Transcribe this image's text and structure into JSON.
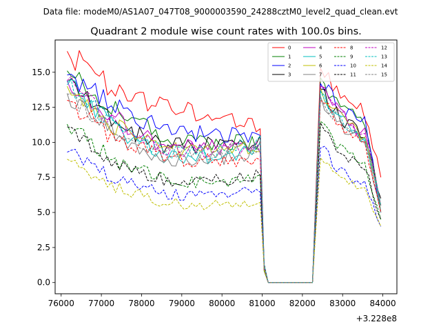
{
  "chart_data": {
    "type": "line",
    "suptitle": "Data file: modeM0/AS1A07_047T08_9000003590_24288cztM0_level2_quad_clean.evt",
    "title": "Quadrant 2 module wise count rates with 100.0s bins.",
    "xlabel": "",
    "ylabel": "",
    "x_offset_label": "+3.228e8",
    "xlim": [
      75850,
      84350
    ],
    "ylim": [
      -0.8,
      17.3
    ],
    "x_ticks": [
      76000,
      77000,
      78000,
      79000,
      80000,
      81000,
      82000,
      83000,
      84000
    ],
    "y_ticks": [
      0.0,
      2.5,
      5.0,
      7.5,
      10.0,
      12.5,
      15.0
    ],
    "x_tick_labels": [
      "76000",
      "77000",
      "78000",
      "79000",
      "80000",
      "81000",
      "82000",
      "83000",
      "84000"
    ],
    "y_tick_labels": [
      "0.0",
      "2.5",
      "5.0",
      "7.5",
      "10.0",
      "12.5",
      "15.0"
    ],
    "segments": {
      "seg1": {
        "x_start": 76150,
        "x_end": 80950
      },
      "gap": {
        "x_values": [
          81050,
          81150,
          82250
        ]
      },
      "seg2": {
        "x_start": 82450,
        "x_end": 83950
      }
    },
    "series": [
      {
        "name": "0",
        "color": "#ff0000",
        "style": "solid",
        "seg1": [
          16.5,
          13.7,
          12.6,
          11.9,
          11.3
        ],
        "seg2": [
          15.3,
          13.8,
          12.7,
          12.0,
          7.5
        ]
      },
      {
        "name": "1",
        "color": "#008000",
        "style": "solid",
        "seg1": [
          15.1,
          12.3,
          10.3,
          10.0,
          10.0
        ],
        "seg2": [
          14.6,
          13.0,
          11.9,
          11.2,
          5.0
        ]
      },
      {
        "name": "2",
        "color": "#0000ff",
        "style": "solid",
        "seg1": [
          14.8,
          12.6,
          10.9,
          10.5,
          10.5
        ],
        "seg2": [
          14.2,
          12.9,
          11.8,
          11.3,
          5.0
        ]
      },
      {
        "name": "3",
        "color": "#000000",
        "style": "solid",
        "seg1": [
          14.3,
          11.3,
          9.8,
          9.8,
          10.1
        ],
        "seg2": [
          13.8,
          12.3,
          11.1,
          10.4,
          6.0
        ]
      },
      {
        "name": "4",
        "color": "#bf00bf",
        "style": "solid",
        "seg1": [
          14.4,
          11.7,
          9.7,
          9.6,
          9.9
        ],
        "seg2": [
          14.0,
          12.6,
          11.4,
          10.7,
          5.5
        ]
      },
      {
        "name": "5",
        "color": "#00bfbf",
        "style": "solid",
        "seg1": [
          14.1,
          11.0,
          9.0,
          8.9,
          9.5
        ],
        "seg2": [
          13.6,
          12.1,
          10.9,
          10.2,
          5.0
        ]
      },
      {
        "name": "6",
        "color": "#bfbf00",
        "style": "solid",
        "seg1": [
          14.0,
          11.1,
          9.5,
          9.3,
          9.8
        ],
        "seg2": [
          13.9,
          12.3,
          11.0,
          10.4,
          5.5
        ]
      },
      {
        "name": "7",
        "color": "#808080",
        "style": "solid",
        "seg1": [
          13.5,
          10.5,
          8.8,
          8.8,
          9.4
        ],
        "seg2": [
          13.3,
          11.8,
          10.6,
          9.9,
          5.0
        ]
      },
      {
        "name": "8",
        "color": "#ff0000",
        "style": "dashed",
        "seg1": [
          13.0,
          10.2,
          8.9,
          8.7,
          8.6
        ],
        "seg2": [
          13.0,
          11.6,
          10.5,
          9.8,
          5.0
        ]
      },
      {
        "name": "9",
        "color": "#008000",
        "style": "dashed",
        "seg1": [
          11.3,
          8.7,
          7.3,
          7.1,
          7.4
        ],
        "seg2": [
          11.5,
          10.0,
          8.9,
          8.3,
          4.5
        ]
      },
      {
        "name": "10",
        "color": "#0000ff",
        "style": "dashed",
        "seg1": [
          9.3,
          7.4,
          6.3,
          6.2,
          6.6
        ],
        "seg2": [
          9.6,
          8.4,
          7.5,
          7.0,
          4.0
        ]
      },
      {
        "name": "11",
        "color": "#000000",
        "style": "dashed",
        "seg1": [
          11.1,
          8.5,
          7.3,
          7.3,
          7.7
        ],
        "seg2": [
          11.4,
          9.9,
          8.8,
          8.2,
          4.5
        ]
      },
      {
        "name": "12",
        "color": "#bf00bf",
        "style": "dashed",
        "seg1": [
          14.4,
          11.2,
          9.5,
          9.4,
          9.8
        ],
        "seg2": [
          13.9,
          12.4,
          11.2,
          10.5,
          5.5
        ]
      },
      {
        "name": "13",
        "color": "#00bfbf",
        "style": "dashed",
        "seg1": [
          14.3,
          11.0,
          9.3,
          9.3,
          9.9
        ],
        "seg2": [
          13.7,
          12.3,
          11.0,
          10.3,
          5.5
        ]
      },
      {
        "name": "14",
        "color": "#bfbf00",
        "style": "dashed",
        "seg1": [
          8.8,
          6.8,
          5.7,
          5.5,
          5.8
        ],
        "seg2": [
          8.9,
          7.8,
          7.0,
          6.5,
          4.0
        ]
      },
      {
        "name": "15",
        "color": "#808080",
        "style": "dashed",
        "seg1": [
          13.4,
          10.6,
          9.3,
          9.3,
          9.7
        ],
        "seg2": [
          13.2,
          11.9,
          10.8,
          10.1,
          5.5
        ]
      }
    ]
  }
}
